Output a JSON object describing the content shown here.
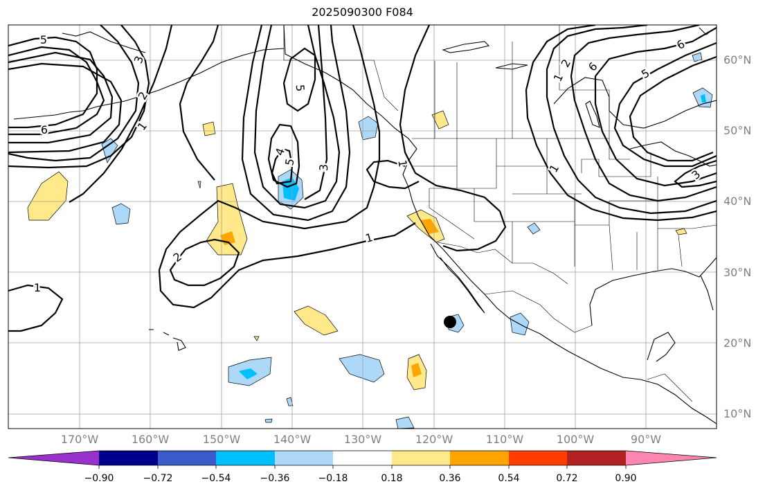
{
  "title": "2025090300 F084",
  "latitude_labels": [
    "60°N",
    "50°N",
    "40°N",
    "30°N",
    "20°N",
    "10°N"
  ],
  "longitude_labels": [
    "170°W",
    "160°W",
    "150°W",
    "140°W",
    "130°W",
    "120°W",
    "110°W",
    "100°W",
    "90°W"
  ],
  "contour_labels": [
    "5",
    "6",
    "3",
    "2",
    "1",
    "1",
    "4",
    "5",
    "5",
    "3",
    "2",
    "1",
    "1",
    "1",
    "6",
    "5",
    "6",
    "2",
    "1",
    "3"
  ],
  "colorbar": {
    "ticks": [
      "−0.90",
      "−0.72",
      "−0.54",
      "−0.36",
      "−0.18",
      "0.18",
      "0.36",
      "0.54",
      "0.72",
      "0.90"
    ],
    "colors": [
      "#9932cc",
      "#00008b",
      "#3a5bc9",
      "#00bfff",
      "#add8f7",
      "#ffffff",
      "#ffe98a",
      "#ffa500",
      "#ff3d00",
      "#b22222",
      "#ff86b0"
    ]
  },
  "colors": {
    "gridline": "#a0a0a0",
    "label": "#808080",
    "marker": "#000000"
  }
}
